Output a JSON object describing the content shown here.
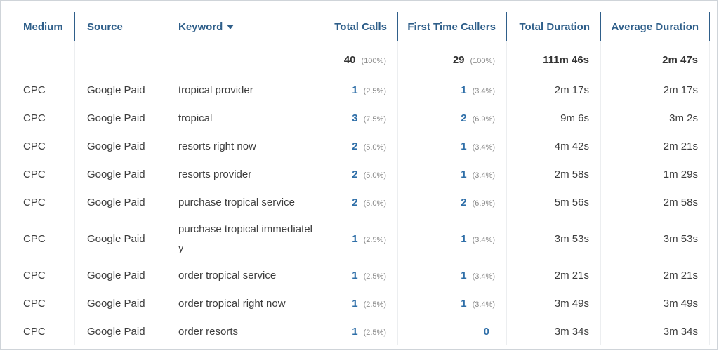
{
  "columns": {
    "medium": "Medium",
    "source": "Source",
    "keyword": "Keyword",
    "total_calls": "Total Calls",
    "first_time_callers": "First Time Callers",
    "total_duration": "Total Duration",
    "average_duration": "Average Duration"
  },
  "sort_indicator": "caret-down-icon",
  "totals": {
    "total_calls": "40",
    "total_calls_pct": "(100%)",
    "first_time_callers": "29",
    "first_time_callers_pct": "(100%)",
    "total_duration": "111m 46s",
    "average_duration": "2m 47s"
  },
  "rows": [
    {
      "medium": "CPC",
      "source": "Google Paid",
      "keyword": "tropical provider",
      "calls": "1",
      "calls_pct": "(2.5%)",
      "first": "1",
      "first_pct": "(3.4%)",
      "tdur": "2m 17s",
      "adur": "2m 17s"
    },
    {
      "medium": "CPC",
      "source": "Google Paid",
      "keyword": "tropical",
      "calls": "3",
      "calls_pct": "(7.5%)",
      "first": "2",
      "first_pct": "(6.9%)",
      "tdur": "9m 6s",
      "adur": "3m 2s"
    },
    {
      "medium": "CPC",
      "source": "Google Paid",
      "keyword": "resorts right now",
      "calls": "2",
      "calls_pct": "(5.0%)",
      "first": "1",
      "first_pct": "(3.4%)",
      "tdur": "4m 42s",
      "adur": "2m 21s"
    },
    {
      "medium": "CPC",
      "source": "Google Paid",
      "keyword": "resorts provider",
      "calls": "2",
      "calls_pct": "(5.0%)",
      "first": "1",
      "first_pct": "(3.4%)",
      "tdur": "2m 58s",
      "adur": "1m 29s"
    },
    {
      "medium": "CPC",
      "source": "Google Paid",
      "keyword": "purchase tropical service",
      "calls": "2",
      "calls_pct": "(5.0%)",
      "first": "2",
      "first_pct": "(6.9%)",
      "tdur": "5m 56s",
      "adur": "2m 58s"
    },
    {
      "medium": "CPC",
      "source": "Google Paid",
      "keyword": "purchase tropical immediately",
      "calls": "1",
      "calls_pct": "(2.5%)",
      "first": "1",
      "first_pct": "(3.4%)",
      "tdur": "3m 53s",
      "adur": "3m 53s"
    },
    {
      "medium": "CPC",
      "source": "Google Paid",
      "keyword": "order tropical service",
      "calls": "1",
      "calls_pct": "(2.5%)",
      "first": "1",
      "first_pct": "(3.4%)",
      "tdur": "2m 21s",
      "adur": "2m 21s"
    },
    {
      "medium": "CPC",
      "source": "Google Paid",
      "keyword": "order tropical right now",
      "calls": "1",
      "calls_pct": "(2.5%)",
      "first": "1",
      "first_pct": "(3.4%)",
      "tdur": "3m 49s",
      "adur": "3m 49s"
    },
    {
      "medium": "CPC",
      "source": "Google Paid",
      "keyword": "order resorts",
      "calls": "1",
      "calls_pct": "(2.5%)",
      "first": "0",
      "first_pct": "",
      "tdur": "3m 34s",
      "adur": "3m 34s"
    }
  ]
}
